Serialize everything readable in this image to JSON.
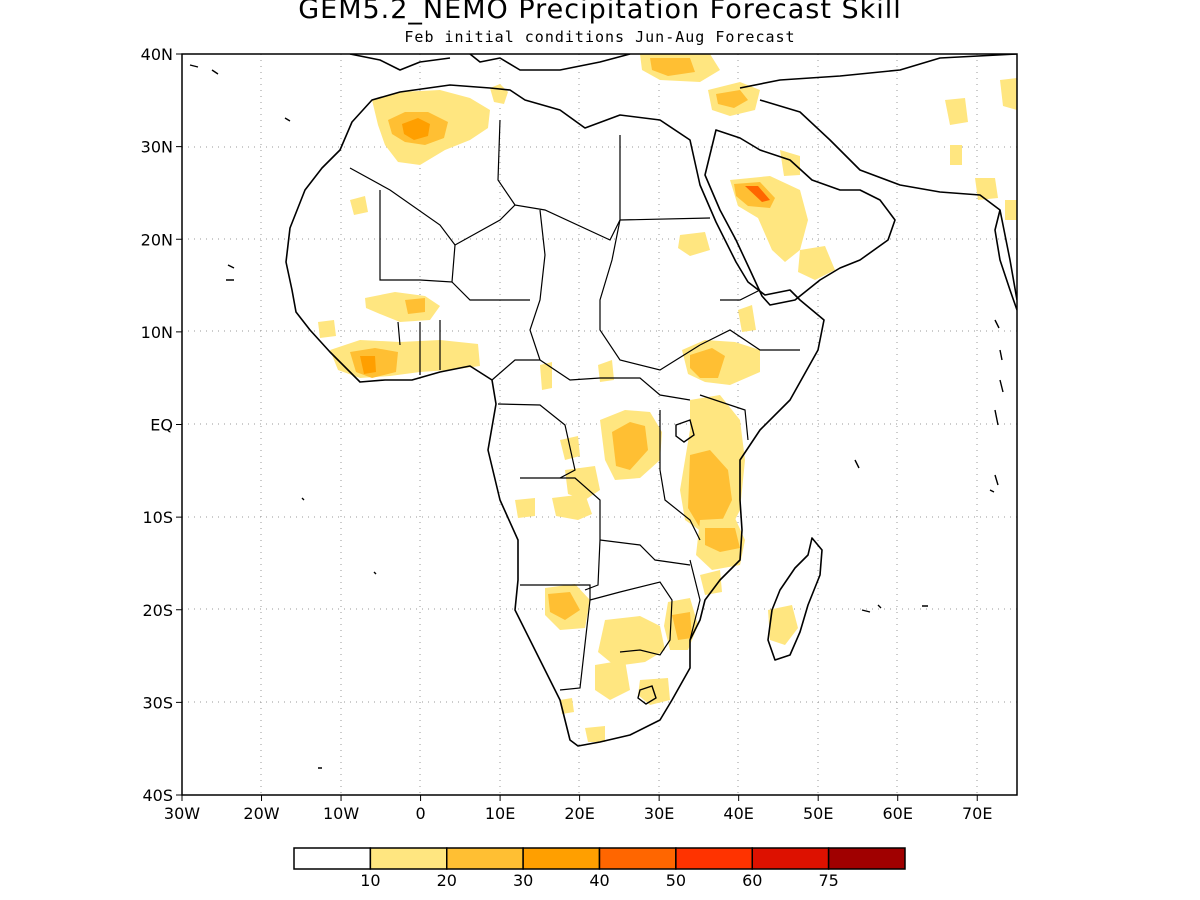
{
  "title": "GEM5.2_NEMO Precipitation Forecast Skill",
  "subtitle": "Feb initial conditions  Jun-Aug Forecast",
  "map": {
    "lon_range": [
      -30,
      75
    ],
    "lat_range": [
      -40,
      40
    ],
    "lat_ticks": [
      "40N",
      "30N",
      "20N",
      "10N",
      "EQ",
      "10S",
      "20S",
      "30S",
      "40S"
    ],
    "lon_ticks": [
      "30W",
      "20W",
      "10W",
      "0",
      "10E",
      "20E",
      "30E",
      "40E",
      "50E",
      "60E",
      "70E"
    ],
    "gridlines": "dotted"
  },
  "legend": {
    "colors": [
      "#ffffff",
      "#ffe680",
      "#ffbf33",
      "#ff9f00",
      "#ff6600",
      "#ff3300",
      "#dd1100",
      "#a00000"
    ],
    "labels": [
      "10",
      "20",
      "30",
      "40",
      "50",
      "60",
      "75"
    ]
  }
}
